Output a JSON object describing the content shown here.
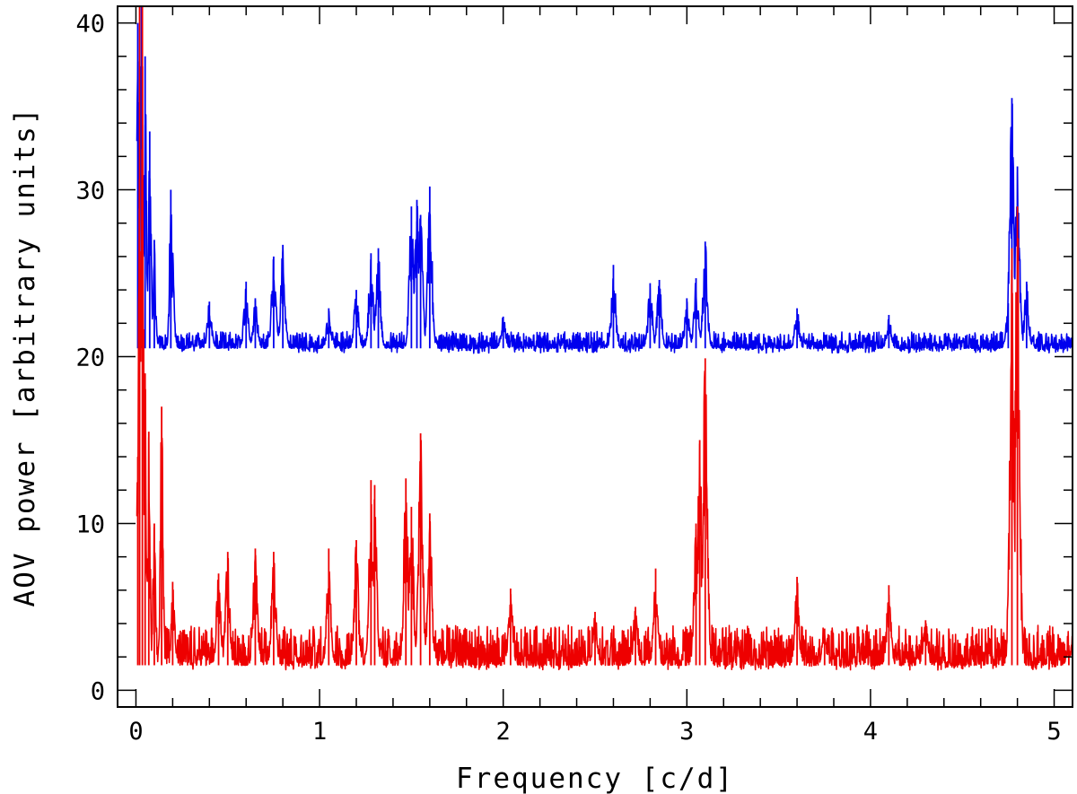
{
  "chart_data": {
    "type": "line",
    "xlabel": "Frequency [c/d]",
    "ylabel": "AOV power [arbitrary units]",
    "xlim": [
      -0.1,
      5.1
    ],
    "ylim": [
      -1,
      41
    ],
    "x_ticks": [
      0,
      1,
      2,
      3,
      4,
      5
    ],
    "x_tick_labels": [
      "0",
      "1",
      "2",
      "3",
      "4",
      "5"
    ],
    "y_ticks": [
      0,
      10,
      20,
      30,
      40
    ],
    "y_tick_labels": [
      "0",
      "10",
      "20",
      "30",
      "40"
    ],
    "grid": false,
    "colors": {
      "upper": "#0000ee",
      "lower": "#ee0000",
      "axis": "#000000"
    },
    "series": [
      {
        "color": "#0000ee",
        "baseline": 20.5,
        "noise": 0.5,
        "x": [
          0.01,
          0.03,
          0.05,
          0.075,
          0.1,
          0.19,
          0.4,
          0.6,
          0.65,
          0.75,
          0.8,
          1.05,
          1.2,
          1.28,
          1.32,
          1.5,
          1.53,
          1.55,
          1.6,
          2.0,
          2.6,
          2.8,
          2.85,
          3.0,
          3.05,
          3.1,
          3.6,
          4.1,
          4.75,
          4.77,
          4.8,
          4.85
        ],
        "y": [
          40,
          41,
          38,
          33.5,
          27,
          30,
          23.3,
          24.5,
          23.5,
          26,
          26.7,
          22.9,
          24,
          26.2,
          26.5,
          29,
          29.4,
          28.5,
          30.2,
          22.4,
          25.5,
          24.4,
          24.6,
          23.5,
          24.7,
          26.9,
          22.9,
          22.5,
          23.2,
          35.5,
          31.4,
          24.5
        ]
      },
      {
        "color": "#ee0000",
        "baseline": 1.5,
        "noise": 1.2,
        "x": [
          0.01,
          0.02,
          0.035,
          0.05,
          0.07,
          0.1,
          0.14,
          0.2,
          0.45,
          0.5,
          0.65,
          0.75,
          1.05,
          1.2,
          1.28,
          1.3,
          1.47,
          1.5,
          1.55,
          1.6,
          2.04,
          2.5,
          2.72,
          2.83,
          3.05,
          3.07,
          3.1,
          3.6,
          3.75,
          4.1,
          4.3,
          4.77,
          4.8,
          5.08
        ],
        "y": [
          14,
          41,
          41,
          19,
          15.5,
          10,
          17,
          6.5,
          7,
          8.3,
          8.5,
          8.3,
          8.5,
          9,
          12.6,
          12.3,
          12.7,
          11,
          15.4,
          10.6,
          6.1,
          4.7,
          5,
          7.3,
          10,
          15,
          19.9,
          6.8,
          3.7,
          6.3,
          4.2,
          26.5,
          29,
          2.7
        ]
      }
    ]
  }
}
